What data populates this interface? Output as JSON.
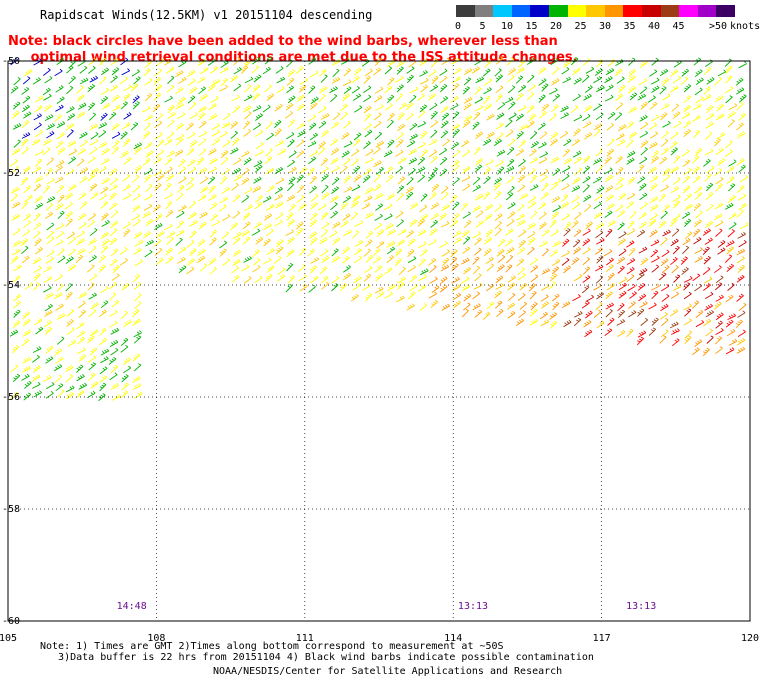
{
  "title": "Rapidscat Winds(12.5KM) v1 20151104 descending",
  "note_line1": "Note: black circles have been added to the wind barbs, wherever less than",
  "note_line2": "     optimal wind retrieval conditions are met due to the ISS attitude changes.",
  "colorbar": {
    "colors": [
      "#3c3c3c",
      "#7f7f7f",
      "#00c8ff",
      "#0064ff",
      "#0000c8",
      "#00b400",
      "#ffff00",
      "#ffc800",
      "#ff9600",
      "#ff0000",
      "#c80000",
      "#9b3c14",
      "#ff00ff",
      "#a000c8",
      "#3c0064"
    ],
    "labels": [
      "0",
      "5",
      "10",
      "15",
      "20",
      "25",
      "30",
      "35",
      "40",
      "45",
      ">50"
    ],
    "units": "knots"
  },
  "axes": {
    "x_ticks": [
      "105",
      "108",
      "111",
      "114",
      "117",
      "120"
    ],
    "y_ticks": [
      "-50",
      "-52",
      "-54",
      "-56",
      "-58",
      "-60"
    ],
    "x_range": [
      105,
      120
    ],
    "y_range": [
      -60,
      -50
    ]
  },
  "time_labels": [
    {
      "text": "14:48",
      "lon": 107.5
    },
    {
      "text": "13:13",
      "lon": 114.4
    },
    {
      "text": "13:13",
      "lon": 117.8
    }
  ],
  "footnote_line1": "Note: 1) Times are GMT 2)Times along bottom correspond to measurement at ~50S",
  "footnote_line2": "   3)Data buffer is 22 hrs from 20151104 4) Black wind barbs indicate possible contamination",
  "credit": "NOAA/NESDIS/Center for Satellite Applications and Research"
}
